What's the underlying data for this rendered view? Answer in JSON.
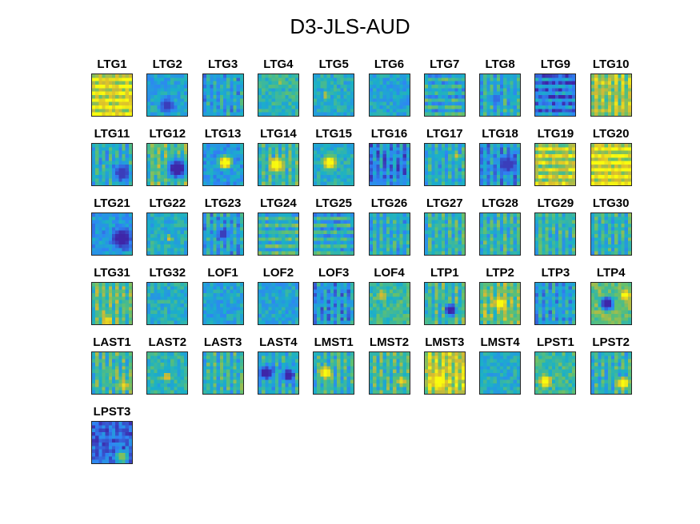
{
  "figure_title": "D3-JLS-AUD",
  "colormap": [
    "#3e26a8",
    "#2f84f5",
    "#1ab0c8",
    "#60c070",
    "#d8ba30",
    "#f9fb0e"
  ],
  "chart_data": {
    "type": "heatmap",
    "title": "D3-JLS-AUD",
    "xlabel": "",
    "ylabel": "",
    "grid": false,
    "panels": [
      {
        "name": "LTG1",
        "base": 0.85,
        "stripes": "h",
        "blobs": []
      },
      {
        "name": "LTG2",
        "base": 0.35,
        "stripes": "",
        "blobs": [
          {
            "x": 0.5,
            "y": 0.75,
            "r": 0.25,
            "v": 0.05
          }
        ]
      },
      {
        "name": "LTG3",
        "base": 0.35,
        "stripes": "v",
        "blobs": []
      },
      {
        "name": "LTG4",
        "base": 0.45,
        "stripes": "",
        "blobs": [
          {
            "x": 0.55,
            "y": 0.2,
            "r": 0.12,
            "v": 0.7
          }
        ]
      },
      {
        "name": "LTG5",
        "base": 0.4,
        "stripes": "",
        "blobs": [
          {
            "x": 0.3,
            "y": 0.5,
            "r": 0.1,
            "v": 0.75
          }
        ]
      },
      {
        "name": "LTG6",
        "base": 0.35,
        "stripes": "",
        "blobs": []
      },
      {
        "name": "LTG7",
        "base": 0.4,
        "stripes": "h",
        "blobs": []
      },
      {
        "name": "LTG8",
        "base": 0.4,
        "stripes": "v",
        "blobs": [
          {
            "x": 0.4,
            "y": 0.6,
            "r": 0.2,
            "v": 0.15
          }
        ]
      },
      {
        "name": "LTG9",
        "base": 0.2,
        "stripes": "h",
        "blobs": []
      },
      {
        "name": "LTG10",
        "base": 0.7,
        "stripes": "v",
        "blobs": []
      },
      {
        "name": "LTG11",
        "base": 0.4,
        "stripes": "v",
        "blobs": [
          {
            "x": 0.75,
            "y": 0.7,
            "r": 0.3,
            "v": 0.05
          }
        ]
      },
      {
        "name": "LTG12",
        "base": 0.55,
        "stripes": "v",
        "blobs": [
          {
            "x": 0.75,
            "y": 0.6,
            "r": 0.35,
            "v": 0.0
          }
        ]
      },
      {
        "name": "LTG13",
        "base": 0.3,
        "stripes": "",
        "blobs": [
          {
            "x": 0.55,
            "y": 0.45,
            "r": 0.22,
            "v": 1.0
          }
        ]
      },
      {
        "name": "LTG14",
        "base": 0.5,
        "stripes": "v",
        "blobs": [
          {
            "x": 0.45,
            "y": 0.5,
            "r": 0.22,
            "v": 1.0
          }
        ]
      },
      {
        "name": "LTG15",
        "base": 0.4,
        "stripes": "",
        "blobs": [
          {
            "x": 0.4,
            "y": 0.45,
            "r": 0.22,
            "v": 1.0
          }
        ]
      },
      {
        "name": "LTG16",
        "base": 0.25,
        "stripes": "v",
        "blobs": []
      },
      {
        "name": "LTG17",
        "base": 0.4,
        "stripes": "v",
        "blobs": [
          {
            "x": 0.8,
            "y": 0.3,
            "r": 0.1,
            "v": 0.8
          }
        ]
      },
      {
        "name": "LTG18",
        "base": 0.3,
        "stripes": "v",
        "blobs": [
          {
            "x": 0.7,
            "y": 0.5,
            "r": 0.3,
            "v": 0.05
          }
        ]
      },
      {
        "name": "LTG19",
        "base": 0.75,
        "stripes": "h",
        "blobs": []
      },
      {
        "name": "LTG20",
        "base": 0.85,
        "stripes": "h",
        "blobs": []
      },
      {
        "name": "LTG21",
        "base": 0.3,
        "stripes": "",
        "blobs": [
          {
            "x": 0.75,
            "y": 0.6,
            "r": 0.35,
            "v": 0.0
          }
        ]
      },
      {
        "name": "LTG22",
        "base": 0.4,
        "stripes": "",
        "blobs": [
          {
            "x": 0.55,
            "y": 0.6,
            "r": 0.1,
            "v": 0.8
          }
        ]
      },
      {
        "name": "LTG23",
        "base": 0.35,
        "stripes": "v",
        "blobs": [
          {
            "x": 0.5,
            "y": 0.5,
            "r": 0.2,
            "v": 0.05
          }
        ]
      },
      {
        "name": "LTG24",
        "base": 0.45,
        "stripes": "h",
        "blobs": []
      },
      {
        "name": "LTG25",
        "base": 0.4,
        "stripes": "h",
        "blobs": []
      },
      {
        "name": "LTG26",
        "base": 0.4,
        "stripes": "v",
        "blobs": []
      },
      {
        "name": "LTG27",
        "base": 0.45,
        "stripes": "v",
        "blobs": []
      },
      {
        "name": "LTG28",
        "base": 0.45,
        "stripes": "v",
        "blobs": []
      },
      {
        "name": "LTG29",
        "base": 0.45,
        "stripes": "v",
        "blobs": []
      },
      {
        "name": "LTG30",
        "base": 0.45,
        "stripes": "v",
        "blobs": []
      },
      {
        "name": "LTG31",
        "base": 0.55,
        "stripes": "v",
        "blobs": [
          {
            "x": 0.4,
            "y": 0.9,
            "r": 0.15,
            "v": 0.9
          }
        ]
      },
      {
        "name": "LTG32",
        "base": 0.4,
        "stripes": "",
        "blobs": []
      },
      {
        "name": "LOF1",
        "base": 0.35,
        "stripes": "",
        "blobs": []
      },
      {
        "name": "LOF2",
        "base": 0.35,
        "stripes": "",
        "blobs": []
      },
      {
        "name": "LOF3",
        "base": 0.3,
        "stripes": "v",
        "blobs": []
      },
      {
        "name": "LOF4",
        "base": 0.5,
        "stripes": "",
        "blobs": [
          {
            "x": 0.3,
            "y": 0.3,
            "r": 0.15,
            "v": 0.8
          }
        ]
      },
      {
        "name": "LTP1",
        "base": 0.5,
        "stripes": "v",
        "blobs": [
          {
            "x": 0.65,
            "y": 0.65,
            "r": 0.2,
            "v": 0.0
          }
        ]
      },
      {
        "name": "LTP2",
        "base": 0.6,
        "stripes": "v",
        "blobs": [
          {
            "x": 0.5,
            "y": 0.5,
            "r": 0.2,
            "v": 1.0
          }
        ]
      },
      {
        "name": "LTP3",
        "base": 0.35,
        "stripes": "v",
        "blobs": []
      },
      {
        "name": "LTP4",
        "base": 0.6,
        "stripes": "",
        "blobs": [
          {
            "x": 0.4,
            "y": 0.5,
            "r": 0.25,
            "v": 0.0
          },
          {
            "x": 0.85,
            "y": 0.3,
            "r": 0.15,
            "v": 1.0
          }
        ]
      },
      {
        "name": "LAST1",
        "base": 0.5,
        "stripes": "v",
        "blobs": [
          {
            "x": 0.8,
            "y": 0.8,
            "r": 0.15,
            "v": 0.9
          }
        ]
      },
      {
        "name": "LAST2",
        "base": 0.45,
        "stripes": "",
        "blobs": [
          {
            "x": 0.5,
            "y": 0.6,
            "r": 0.15,
            "v": 0.8
          }
        ]
      },
      {
        "name": "LAST3",
        "base": 0.45,
        "stripes": "v",
        "blobs": []
      },
      {
        "name": "LAST4",
        "base": 0.4,
        "stripes": "v",
        "blobs": [
          {
            "x": 0.2,
            "y": 0.5,
            "r": 0.25,
            "v": 0.0
          },
          {
            "x": 0.75,
            "y": 0.55,
            "r": 0.22,
            "v": 0.0
          }
        ]
      },
      {
        "name": "LMST1",
        "base": 0.45,
        "stripes": "v",
        "blobs": [
          {
            "x": 0.3,
            "y": 0.5,
            "r": 0.2,
            "v": 1.0
          }
        ]
      },
      {
        "name": "LMST2",
        "base": 0.5,
        "stripes": "v",
        "blobs": [
          {
            "x": 0.8,
            "y": 0.7,
            "r": 0.15,
            "v": 0.9
          }
        ]
      },
      {
        "name": "LMST3",
        "base": 0.75,
        "stripes": "v",
        "blobs": [
          {
            "x": 0.35,
            "y": 0.7,
            "r": 0.25,
            "v": 1.0
          }
        ]
      },
      {
        "name": "LMST4",
        "base": 0.4,
        "stripes": "",
        "blobs": []
      },
      {
        "name": "LPST1",
        "base": 0.5,
        "stripes": "",
        "blobs": [
          {
            "x": 0.25,
            "y": 0.7,
            "r": 0.2,
            "v": 1.0
          }
        ]
      },
      {
        "name": "LPST2",
        "base": 0.45,
        "stripes": "v",
        "blobs": [
          {
            "x": 0.8,
            "y": 0.75,
            "r": 0.2,
            "v": 1.0
          }
        ]
      },
      {
        "name": "LPST3",
        "base": 0.15,
        "stripes": "",
        "blobs": [
          {
            "x": 0.75,
            "y": 0.85,
            "r": 0.2,
            "v": 0.65
          }
        ]
      }
    ]
  }
}
